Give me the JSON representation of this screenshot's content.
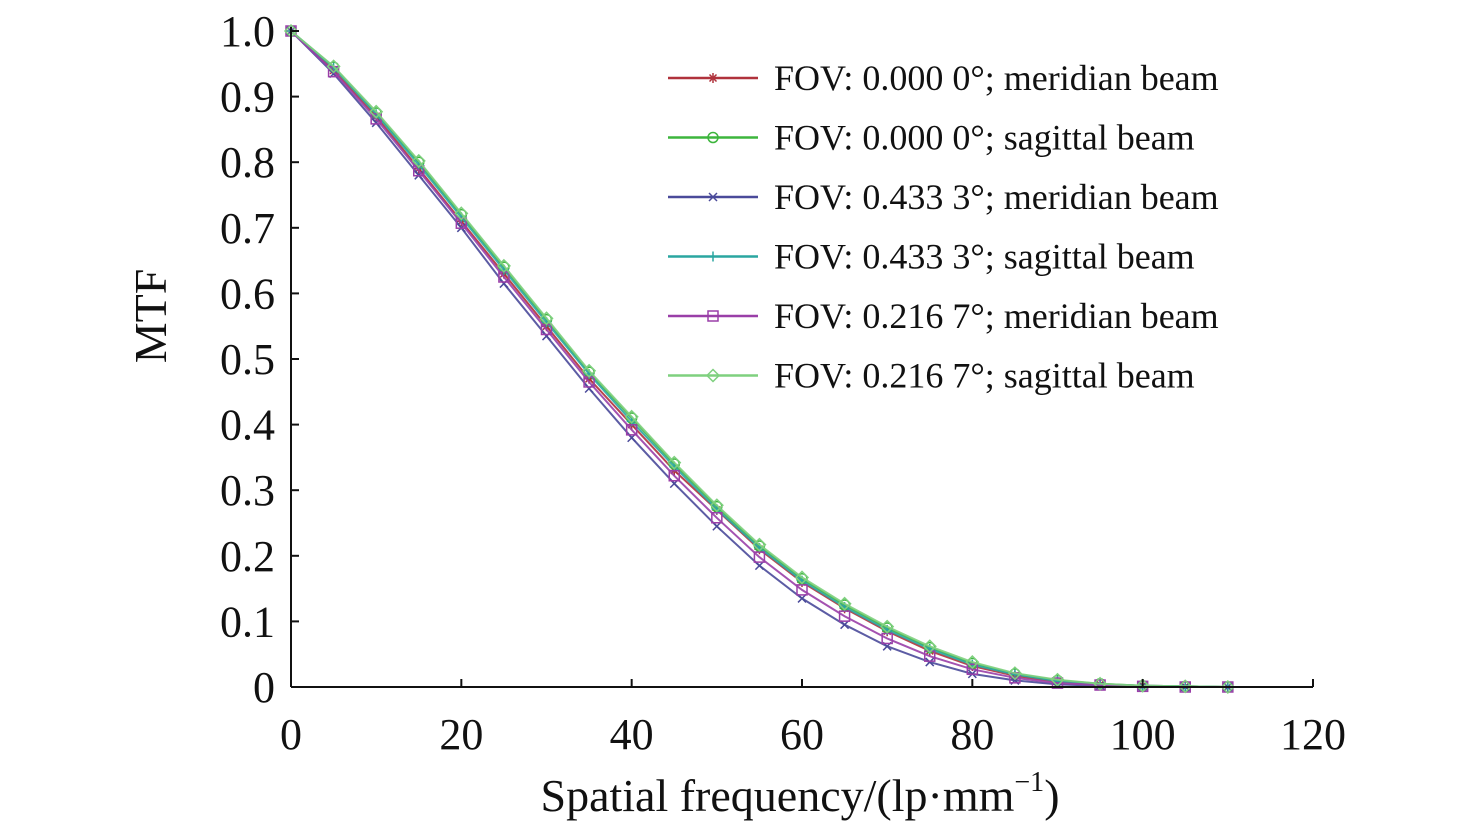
{
  "chart_data": {
    "type": "line",
    "xlabel": "Spatial frequency/(lp·mm",
    "xlabel_superscript": "−1",
    "xlabel_suffix": ")",
    "ylabel": "MTF",
    "xlim": [
      0,
      120
    ],
    "ylim": [
      0,
      1.0
    ],
    "x_ticks": [
      0,
      20,
      40,
      60,
      80,
      100,
      120
    ],
    "x_tick_labels": [
      "0",
      "20",
      "40",
      "60",
      "80",
      "100",
      "120"
    ],
    "y_ticks": [
      0,
      0.1,
      0.2,
      0.3,
      0.4,
      0.5,
      0.6,
      0.7,
      0.8,
      0.9,
      1.0
    ],
    "y_tick_labels": [
      "0",
      "0.1",
      "0.2",
      "0.3",
      "0.4",
      "0.5",
      "0.6",
      "0.7",
      "0.8",
      "0.9",
      "1.0"
    ],
    "grid": false,
    "legend_position": "top-right",
    "x": [
      0,
      5,
      10,
      15,
      20,
      25,
      30,
      35,
      40,
      45,
      50,
      55,
      60,
      65,
      70,
      75,
      80,
      85,
      90,
      95,
      100,
      105,
      110
    ],
    "series": [
      {
        "name": "FOV: 0.000 0°; meridian beam",
        "color": "#b0323c",
        "marker": "star",
        "values": [
          1.0,
          0.94,
          0.87,
          0.79,
          0.71,
          0.63,
          0.55,
          0.47,
          0.4,
          0.33,
          0.27,
          0.21,
          0.16,
          0.12,
          0.085,
          0.055,
          0.032,
          0.017,
          0.008,
          0.004,
          0.002,
          0.001,
          0.0
        ]
      },
      {
        "name": "FOV: 0.000 0°; sagittal beam",
        "color": "#3db53d",
        "marker": "circle",
        "values": [
          1.0,
          0.945,
          0.875,
          0.8,
          0.72,
          0.64,
          0.56,
          0.48,
          0.41,
          0.34,
          0.275,
          0.215,
          0.165,
          0.125,
          0.09,
          0.06,
          0.036,
          0.02,
          0.01,
          0.005,
          0.002,
          0.001,
          0.0
        ]
      },
      {
        "name": "FOV: 0.433 3°; meridian beam",
        "color": "#4a4a9a",
        "marker": "x",
        "values": [
          1.0,
          0.935,
          0.86,
          0.78,
          0.7,
          0.615,
          0.535,
          0.455,
          0.38,
          0.31,
          0.245,
          0.185,
          0.135,
          0.095,
          0.062,
          0.038,
          0.02,
          0.01,
          0.004,
          0.002,
          0.001,
          0.0,
          0.0
        ]
      },
      {
        "name": "FOV: 0.433 3°; sagittal beam",
        "color": "#2aa6a0",
        "marker": "plus",
        "values": [
          1.0,
          0.944,
          0.873,
          0.796,
          0.716,
          0.636,
          0.556,
          0.477,
          0.405,
          0.336,
          0.271,
          0.212,
          0.162,
          0.122,
          0.087,
          0.058,
          0.034,
          0.019,
          0.009,
          0.004,
          0.002,
          0.001,
          0.0
        ]
      },
      {
        "name": "FOV: 0.216 7°; meridian beam",
        "color": "#9a3fa8",
        "marker": "square",
        "values": [
          1.0,
          0.938,
          0.866,
          0.787,
          0.707,
          0.625,
          0.545,
          0.465,
          0.392,
          0.322,
          0.258,
          0.198,
          0.148,
          0.108,
          0.074,
          0.047,
          0.027,
          0.014,
          0.006,
          0.003,
          0.001,
          0.0,
          0.0
        ]
      },
      {
        "name": "FOV: 0.216 7°; sagittal beam",
        "color": "#7fd07f",
        "marker": "diamond",
        "values": [
          1.0,
          0.946,
          0.877,
          0.802,
          0.722,
          0.642,
          0.562,
          0.482,
          0.412,
          0.342,
          0.277,
          0.217,
          0.167,
          0.127,
          0.092,
          0.062,
          0.038,
          0.021,
          0.011,
          0.005,
          0.002,
          0.001,
          0.0
        ]
      }
    ]
  }
}
